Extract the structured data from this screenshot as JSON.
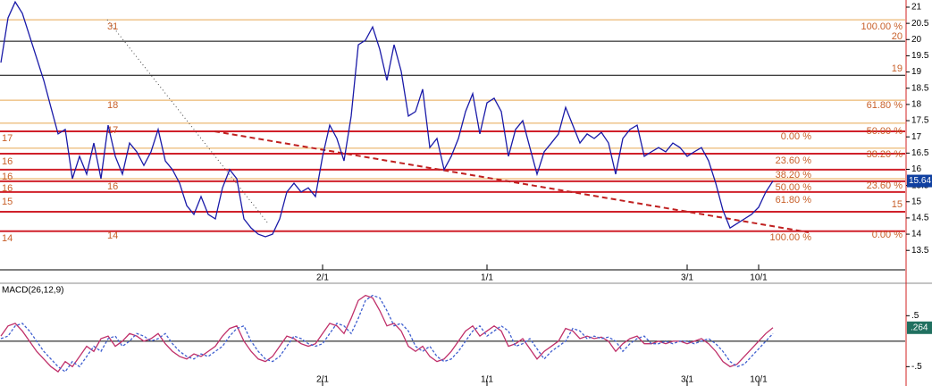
{
  "chart_data": [
    {
      "type": "line",
      "categories": [
        null,
        null,
        null,
        null,
        null,
        null,
        null,
        null,
        null,
        null,
        null,
        null,
        null,
        null,
        null,
        null,
        null,
        null,
        null,
        null,
        null,
        null,
        null,
        null,
        null,
        null,
        null,
        null,
        null,
        null,
        null,
        null,
        null,
        null,
        null,
        null,
        null,
        null,
        null,
        null,
        null,
        null,
        null,
        null,
        null,
        "2/1",
        null,
        null,
        null,
        null,
        null,
        null,
        null,
        null,
        null,
        null,
        null,
        null,
        null,
        null,
        null,
        null,
        null,
        null,
        null,
        null,
        null,
        null,
        "1/1",
        null,
        null,
        null,
        null,
        null,
        null,
        null,
        null,
        null,
        null,
        null,
        null,
        null,
        null,
        null,
        null,
        null,
        null,
        null,
        null,
        null,
        null,
        null,
        null,
        null,
        null,
        null,
        "3/1",
        null,
        null,
        null,
        null,
        null,
        null,
        null,
        null,
        null,
        "10/1",
        null,
        null
      ],
      "series": [
        {
          "color": "#1a1aa8",
          "values": [
            19.29,
            20.67,
            21.16,
            20.81,
            20.12,
            19.43,
            18.74,
            17.91,
            17.09,
            17.23,
            15.71,
            16.4,
            15.85,
            16.81,
            15.71,
            17.36,
            16.4,
            15.85,
            16.81,
            16.54,
            16.12,
            16.54,
            17.23,
            16.26,
            15.99,
            15.57,
            14.88,
            14.61,
            15.16,
            14.61,
            14.47,
            15.43,
            15.99,
            15.71,
            14.47,
            14.19,
            14.0,
            13.92,
            14.0,
            14.47,
            15.3,
            15.57,
            15.3,
            15.43,
            15.16,
            16.4,
            17.36,
            16.95,
            16.26,
            17.64,
            19.84,
            19.98,
            20.39,
            19.7,
            18.74,
            19.84,
            19.02,
            17.64,
            17.78,
            18.47,
            16.67,
            16.95,
            15.99,
            16.4,
            16.95,
            17.78,
            18.33,
            17.09,
            18.05,
            18.19,
            17.78,
            16.4,
            17.23,
            17.5,
            16.67,
            15.85,
            16.54,
            16.81,
            17.09,
            17.91,
            17.36,
            16.81,
            17.09,
            16.95,
            17.14,
            16.81,
            15.85,
            16.95,
            17.23,
            17.36,
            16.4,
            16.54,
            16.67,
            16.54,
            16.81,
            16.67,
            16.4,
            16.54,
            16.67,
            16.26,
            15.57,
            14.74,
            14.19,
            14.33,
            14.47,
            14.61,
            14.83,
            15.3,
            15.64
          ]
        }
      ],
      "ylim": [
        12.9,
        21.22
      ],
      "yticks": [
        13.5,
        14,
        14.5,
        15,
        15.5,
        16,
        16.5,
        17,
        17.5,
        18,
        18.5,
        19,
        19.5,
        20,
        20.5,
        21
      ],
      "levels": [
        {
          "value": 20.61,
          "color": "#e8a850"
        },
        {
          "value": 19.95,
          "color": "#000000"
        },
        {
          "value": 18.9,
          "color": "#000000"
        },
        {
          "value": 18.13,
          "color": "#e8a850"
        },
        {
          "value": 17.42,
          "color": "#e8a850"
        },
        {
          "value": 17.17,
          "color": "#d0202a"
        },
        {
          "value": 16.65,
          "color": "#e8a850"
        },
        {
          "value": 16.48,
          "color": "#d0202a"
        },
        {
          "value": 15.99,
          "color": "#d0202a"
        },
        {
          "value": 15.71,
          "color": "#e8a850"
        },
        {
          "value": 15.63,
          "color": "#d0202a"
        },
        {
          "value": 15.3,
          "color": "#d0202a"
        },
        {
          "value": 14.69,
          "color": "#d0202a"
        },
        {
          "value": 14.09,
          "color": "#d0202a"
        }
      ],
      "annotations": [
        "17",
        "16",
        "16",
        "16",
        "15",
        "14",
        "31",
        "18",
        "17",
        "16",
        "14",
        "100.00 %",
        "20",
        "19",
        "61.80 %",
        "50.00 %",
        "0.00 %",
        "38.20 %",
        "23.60 %",
        "38.20 %",
        "23.60 %",
        "50.00 %",
        "61.80 %",
        "15",
        "100.00 %",
        "0.00 %"
      ]
    },
    {
      "type": "line",
      "title": "MACD(26,12,9)",
      "series": [
        {
          "color": "#c0306a",
          "values": [
            0.1,
            0.3,
            0.35,
            0.2,
            0.0,
            -0.2,
            -0.35,
            -0.5,
            -0.6,
            -0.4,
            -0.5,
            -0.3,
            -0.1,
            -0.2,
            0.05,
            0.1,
            -0.1,
            0.0,
            0.15,
            0.1,
            0.0,
            0.05,
            0.15,
            -0.05,
            -0.2,
            -0.3,
            -0.35,
            -0.25,
            -0.3,
            -0.2,
            -0.1,
            0.1,
            0.25,
            0.3,
            0.0,
            -0.2,
            -0.35,
            -0.4,
            -0.3,
            -0.1,
            0.1,
            0.05,
            -0.05,
            -0.1,
            -0.05,
            0.15,
            0.35,
            0.3,
            0.15,
            0.45,
            0.8,
            0.9,
            0.85,
            0.6,
            0.3,
            0.35,
            0.2,
            -0.1,
            -0.2,
            -0.1,
            -0.3,
            -0.4,
            -0.35,
            -0.2,
            0.0,
            0.2,
            0.3,
            0.1,
            0.2,
            0.3,
            0.2,
            -0.1,
            -0.05,
            0.05,
            -0.15,
            -0.35,
            -0.2,
            -0.1,
            0.0,
            0.25,
            0.2,
            0.05,
            0.1,
            0.05,
            0.08,
            0.0,
            -0.2,
            -0.05,
            0.05,
            0.1,
            -0.05,
            -0.05,
            0.0,
            -0.05,
            0.0,
            0.0,
            -0.05,
            0.0,
            0.05,
            -0.05,
            -0.2,
            -0.4,
            -0.5,
            -0.45,
            -0.3,
            -0.15,
            0.0,
            0.15,
            0.264
          ]
        },
        {
          "color": "#4060d0",
          "values": [
            0.05,
            0.1,
            0.3,
            0.35,
            0.2,
            0.0,
            -0.2,
            -0.35,
            -0.5,
            -0.6,
            -0.4,
            -0.5,
            -0.3,
            -0.1,
            -0.2,
            0.05,
            0.1,
            -0.1,
            0.0,
            0.15,
            0.1,
            0.0,
            0.05,
            0.15,
            -0.05,
            -0.2,
            -0.3,
            -0.35,
            -0.25,
            -0.3,
            -0.2,
            -0.1,
            0.1,
            0.25,
            0.3,
            0.0,
            -0.2,
            -0.35,
            -0.4,
            -0.3,
            -0.1,
            0.1,
            0.05,
            -0.05,
            -0.1,
            -0.05,
            0.15,
            0.35,
            0.3,
            0.15,
            0.45,
            0.8,
            0.9,
            0.85,
            0.6,
            0.3,
            0.35,
            0.2,
            -0.1,
            -0.2,
            -0.1,
            -0.3,
            -0.4,
            -0.35,
            -0.2,
            0.0,
            0.2,
            0.3,
            0.1,
            0.2,
            0.3,
            0.2,
            -0.1,
            -0.05,
            0.05,
            -0.15,
            -0.35,
            -0.2,
            -0.1,
            0.0,
            0.25,
            0.2,
            0.05,
            0.1,
            0.05,
            0.08,
            0.0,
            -0.2,
            -0.05,
            0.05,
            0.1,
            -0.05,
            -0.05,
            0.0,
            -0.05,
            0.0,
            0.0,
            -0.05,
            0.0,
            0.05,
            -0.05,
            -0.2,
            -0.4,
            -0.5,
            -0.45,
            -0.3,
            -0.15,
            0.0,
            0.15
          ]
        }
      ],
      "ylim": [
        -0.88,
        1.12
      ],
      "yticks": [
        {
          "value": -0.5,
          "label": "-.5"
        },
        {
          "value": 0.5,
          "label": ".5"
        }
      ],
      "reference_line": 0,
      "current_label": ".264"
    }
  ]
}
